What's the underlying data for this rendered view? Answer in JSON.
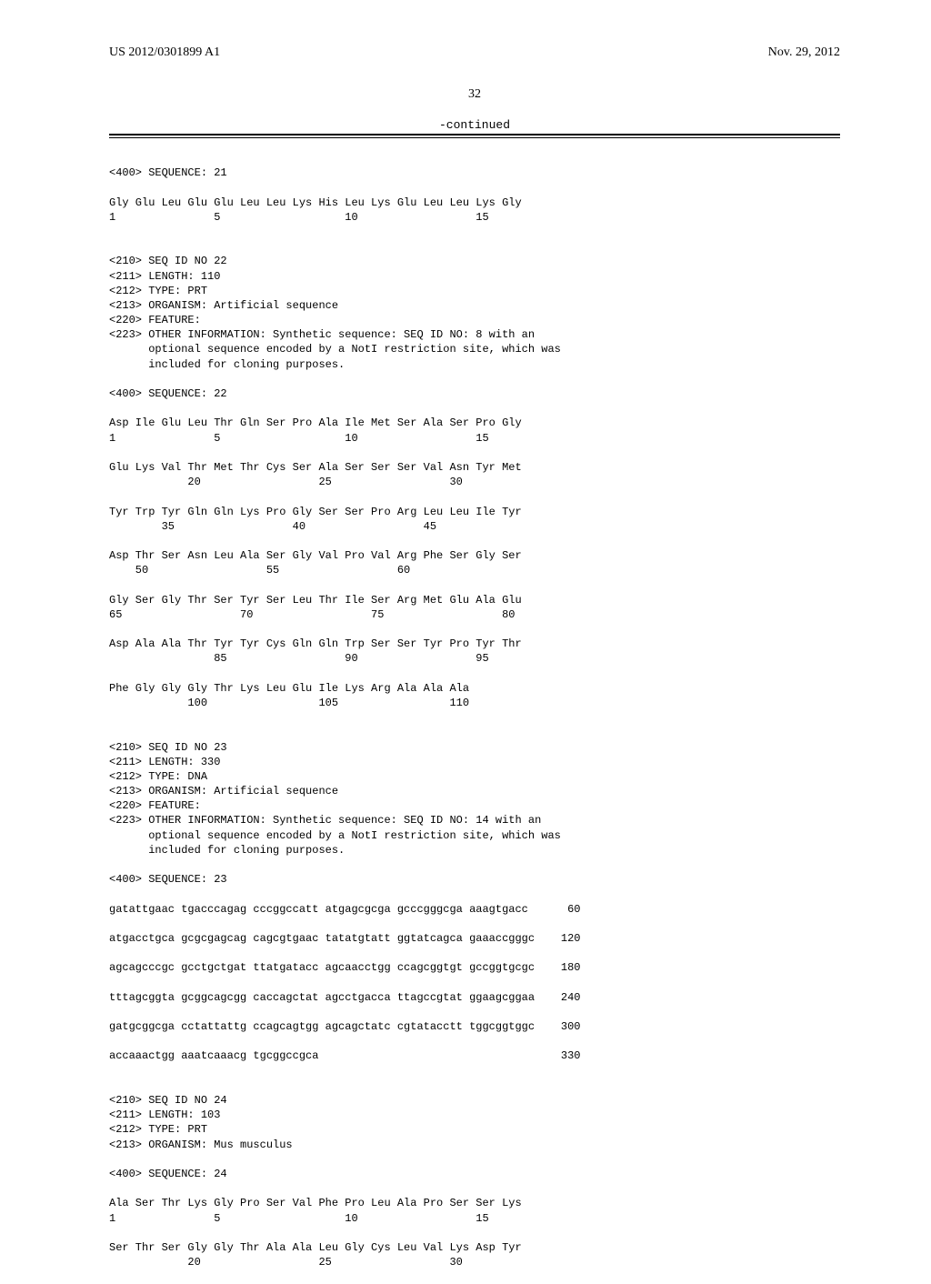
{
  "header": {
    "pub_number": "US 2012/0301899 A1",
    "pub_date": "Nov. 29, 2012",
    "page_number": "32",
    "continued_label": "-continued"
  },
  "sequences": [
    {
      "header_lines": [
        "<400> SEQUENCE: 21"
      ],
      "body_lines": [
        "Gly Glu Leu Glu Glu Leu Leu Lys His Leu Lys Glu Leu Leu Lys Gly",
        "1               5                   10                  15"
      ]
    },
    {
      "header_lines": [
        "<210> SEQ ID NO 22",
        "<211> LENGTH: 110",
        "<212> TYPE: PRT",
        "<213> ORGANISM: Artificial sequence",
        "<220> FEATURE:",
        "<223> OTHER INFORMATION: Synthetic sequence: SEQ ID NO: 8 with an",
        "      optional sequence encoded by a NotI restriction site, which was",
        "      included for cloning purposes.",
        "",
        "<400> SEQUENCE: 22"
      ],
      "body_lines": [
        "Asp Ile Glu Leu Thr Gln Ser Pro Ala Ile Met Ser Ala Ser Pro Gly",
        "1               5                   10                  15",
        "",
        "Glu Lys Val Thr Met Thr Cys Ser Ala Ser Ser Ser Val Asn Tyr Met",
        "            20                  25                  30",
        "",
        "Tyr Trp Tyr Gln Gln Lys Pro Gly Ser Ser Pro Arg Leu Leu Ile Tyr",
        "        35                  40                  45",
        "",
        "Asp Thr Ser Asn Leu Ala Ser Gly Val Pro Val Arg Phe Ser Gly Ser",
        "    50                  55                  60",
        "",
        "Gly Ser Gly Thr Ser Tyr Ser Leu Thr Ile Ser Arg Met Glu Ala Glu",
        "65                  70                  75                  80",
        "",
        "Asp Ala Ala Thr Tyr Tyr Cys Gln Gln Trp Ser Ser Tyr Pro Tyr Thr",
        "                85                  90                  95",
        "",
        "Phe Gly Gly Gly Thr Lys Leu Glu Ile Lys Arg Ala Ala Ala",
        "            100                 105                 110"
      ]
    },
    {
      "header_lines": [
        "<210> SEQ ID NO 23",
        "<211> LENGTH: 330",
        "<212> TYPE: DNA",
        "<213> ORGANISM: Artificial sequence",
        "<220> FEATURE:",
        "<223> OTHER INFORMATION: Synthetic sequence: SEQ ID NO: 14 with an",
        "      optional sequence encoded by a NotI restriction site, which was",
        "      included for cloning purposes.",
        "",
        "<400> SEQUENCE: 23"
      ],
      "body_lines": [
        "gatattgaac tgacccagag cccggccatt atgagcgcga gcccgggcga aaagtgacc      60",
        "",
        "atgacctgca gcgcgagcag cagcgtgaac tatatgtatt ggtatcagca gaaaccgggc    120",
        "",
        "agcagcccgc gcctgctgat ttatgatacc agcaacctgg ccagcggtgt gccggtgcgc    180",
        "",
        "tttagcggta gcggcagcgg caccagctat agcctgacca ttagccgtat ggaagcggaa    240",
        "",
        "gatgcggcga cctattattg ccagcagtgg agcagctatc cgtatacctt tggcggtggc    300",
        "",
        "accaaactgg aaatcaaacg tgcggccgca                                     330"
      ]
    },
    {
      "header_lines": [
        "<210> SEQ ID NO 24",
        "<211> LENGTH: 103",
        "<212> TYPE: PRT",
        "<213> ORGANISM: Mus musculus",
        "",
        "<400> SEQUENCE: 24"
      ],
      "body_lines": [
        "Ala Ser Thr Lys Gly Pro Ser Val Phe Pro Leu Ala Pro Ser Ser Lys",
        "1               5                   10                  15",
        "",
        "Ser Thr Ser Gly Gly Thr Ala Ala Leu Gly Cys Leu Val Lys Asp Tyr",
        "            20                  25                  30"
      ]
    }
  ],
  "style": {
    "mono_font_size": 12,
    "mono_line_height": 1.35,
    "header_font_size": 14,
    "background_color": "#ffffff",
    "rule_color": "#000000"
  }
}
